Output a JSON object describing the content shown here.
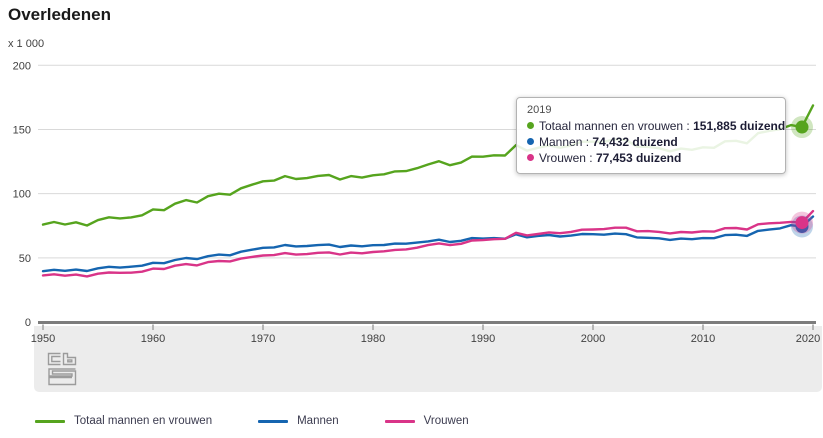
{
  "title": "Overledenen",
  "unit_label": "x 1 000",
  "ui": {
    "colors": {
      "grid": "#d9d9d9",
      "axis": "#7c7c7c",
      "tick": "#b5b5b5",
      "tick_label": "#414141",
      "footer_bg": "#ececec",
      "logo": "#9b9b9b"
    }
  },
  "tooltip": {
    "year": "2019",
    "rows": [
      {
        "series": "total",
        "label": "Totaal mannen en vrouwen :",
        "value": "151,885 duizend"
      },
      {
        "series": "men",
        "label": "Mannen :",
        "value": "74,432 duizend"
      },
      {
        "series": "women",
        "label": "Vrouwen :",
        "value": "77,453 duizend"
      }
    ]
  },
  "chart_data": {
    "type": "line",
    "title": "Overledenen",
    "xlabel": "",
    "ylabel": "x 1 000",
    "ylim": [
      0,
      200
    ],
    "xlim": [
      1950,
      2020
    ],
    "yticks": [
      0,
      50,
      100,
      150,
      200
    ],
    "xticks": [
      1950,
      1960,
      1970,
      1980,
      1990,
      2000,
      2010,
      2020
    ],
    "grid": "horizontal",
    "legend_position": "bottom",
    "hover_year": 2019,
    "years": [
      1950,
      1951,
      1952,
      1953,
      1954,
      1955,
      1956,
      1957,
      1958,
      1959,
      1960,
      1961,
      1962,
      1963,
      1964,
      1965,
      1966,
      1967,
      1968,
      1969,
      1970,
      1971,
      1972,
      1973,
      1974,
      1975,
      1976,
      1977,
      1978,
      1979,
      1980,
      1981,
      1982,
      1983,
      1984,
      1985,
      1986,
      1987,
      1988,
      1989,
      1990,
      1991,
      1992,
      1993,
      1994,
      1995,
      1996,
      1997,
      1998,
      1999,
      2000,
      2001,
      2002,
      2003,
      2004,
      2005,
      2006,
      2007,
      2008,
      2009,
      2010,
      2011,
      2012,
      2013,
      2014,
      2015,
      2016,
      2017,
      2018,
      2019,
      2020
    ],
    "series": [
      {
        "name": "Totaal mannen en vrouwen",
        "color": "#56a41e",
        "values": [
          75.9,
          77.9,
          76.0,
          77.7,
          75.2,
          79.4,
          81.6,
          80.7,
          81.5,
          83.1,
          87.7,
          87.1,
          92.2,
          95.0,
          93.1,
          98.0,
          100.0,
          99.2,
          104.2,
          107.0,
          109.6,
          110.2,
          113.7,
          111.4,
          112.1,
          113.8,
          114.5,
          111.0,
          113.7,
          112.5,
          114.3,
          115.1,
          117.3,
          117.6,
          119.8,
          122.7,
          125.3,
          122.2,
          124.2,
          128.9,
          128.8,
          129.9,
          129.7,
          137.8,
          133.5,
          135.7,
          137.6,
          135.8,
          137.5,
          140.5,
          140.5,
          140.4,
          142.4,
          141.9,
          136.6,
          136.4,
          135.4,
          133.0,
          135.1,
          134.2,
          136.1,
          135.7,
          140.8,
          141.2,
          139.2,
          147.1,
          148.9,
          150.2,
          153.4,
          151.885,
          168.7
        ]
      },
      {
        "name": "Mannen",
        "color": "#1565b0",
        "values": [
          39.6,
          40.7,
          39.9,
          40.8,
          39.7,
          41.8,
          43.0,
          42.4,
          43.1,
          43.9,
          46.1,
          45.8,
          48.3,
          49.9,
          49.0,
          51.3,
          52.5,
          52.0,
          54.8,
          56.3,
          57.8,
          58.1,
          60.0,
          58.9,
          59.2,
          59.9,
          60.3,
          58.4,
          59.6,
          59.0,
          59.8,
          60.0,
          61.1,
          61.0,
          61.9,
          62.8,
          64.1,
          62.3,
          63.3,
          65.4,
          65.0,
          65.4,
          64.9,
          68.3,
          66.0,
          67.1,
          67.8,
          66.6,
          67.3,
          68.6,
          68.4,
          68.0,
          68.9,
          68.4,
          65.9,
          65.6,
          65.2,
          64.0,
          65.0,
          64.5,
          65.4,
          65.3,
          67.7,
          68.0,
          67.1,
          71.0,
          72.0,
          72.9,
          75.4,
          74.432,
          82.2
        ]
      },
      {
        "name": "Vrouwen",
        "color": "#d93488",
        "values": [
          36.3,
          37.2,
          36.1,
          36.9,
          35.5,
          37.6,
          38.6,
          38.3,
          38.4,
          39.2,
          41.6,
          41.3,
          43.9,
          45.1,
          44.1,
          46.7,
          47.5,
          47.2,
          49.4,
          50.7,
          51.8,
          52.1,
          53.7,
          52.5,
          52.9,
          53.9,
          54.2,
          52.6,
          54.1,
          53.5,
          54.5,
          55.1,
          56.2,
          56.6,
          57.9,
          59.9,
          61.2,
          59.9,
          60.9,
          63.5,
          63.8,
          64.5,
          64.8,
          69.5,
          67.5,
          68.6,
          69.8,
          69.2,
          70.2,
          71.9,
          72.1,
          72.4,
          73.5,
          73.5,
          70.7,
          70.8,
          70.2,
          69.0,
          70.1,
          69.7,
          70.7,
          70.4,
          73.1,
          73.2,
          72.1,
          76.1,
          76.9,
          77.3,
          78.0,
          77.453,
          86.4
        ]
      }
    ]
  }
}
